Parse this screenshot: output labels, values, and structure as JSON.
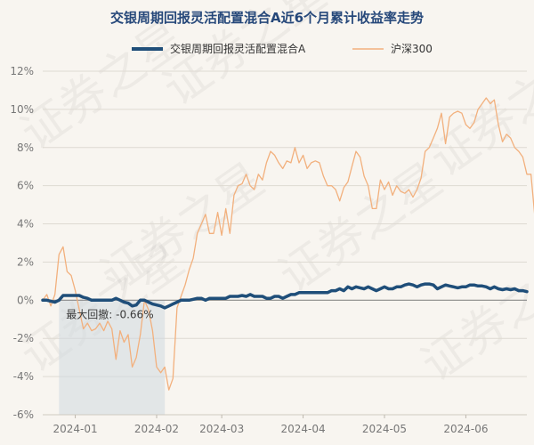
{
  "chart_data": {
    "type": "line",
    "title": "交银周期回报灵活配置混合A近6个月累计收益率走势",
    "watermark": "证券之星",
    "x_tick_labels": [
      "2024-01",
      "2024-02",
      "2024-03",
      "2024-04",
      "2024-05",
      "2024-06"
    ],
    "y_tick_labels": [
      "12%",
      "10%",
      "8%",
      "6%",
      "4%",
      "2%",
      "0%",
      "-2%",
      "-4%",
      "-6%"
    ],
    "ylim": [
      -6,
      12
    ],
    "y_unit": "%",
    "n_points": 120,
    "x_tick_indices": [
      8,
      28,
      44,
      64,
      84,
      104
    ],
    "drawdown_label": "最大回撤: -0.66%",
    "drawdown_range": [
      4,
      30
    ],
    "series": [
      {
        "name": "交银周期回报灵活配置混合A",
        "color": "#1f4e79",
        "values": [
          0.0,
          0.0,
          -0.05,
          -0.1,
          0.0,
          0.25,
          0.25,
          0.25,
          0.25,
          0.25,
          0.15,
          0.1,
          0.0,
          0.0,
          0.0,
          0.0,
          0.0,
          0.0,
          0.1,
          0.0,
          -0.1,
          -0.15,
          -0.3,
          -0.25,
          0.0,
          0.0,
          -0.1,
          -0.2,
          -0.25,
          -0.3,
          -0.4,
          -0.3,
          -0.2,
          -0.1,
          0.0,
          0.0,
          0.0,
          0.05,
          0.1,
          0.1,
          0.0,
          0.1,
          0.1,
          0.1,
          0.1,
          0.1,
          0.2,
          0.2,
          0.2,
          0.25,
          0.2,
          0.3,
          0.2,
          0.2,
          0.2,
          0.1,
          0.1,
          0.2,
          0.2,
          0.1,
          0.2,
          0.3,
          0.3,
          0.4,
          0.4,
          0.4,
          0.4,
          0.4,
          0.4,
          0.4,
          0.4,
          0.5,
          0.5,
          0.6,
          0.5,
          0.7,
          0.6,
          0.7,
          0.65,
          0.6,
          0.7,
          0.6,
          0.5,
          0.6,
          0.7,
          0.6,
          0.6,
          0.7,
          0.7,
          0.8,
          0.85,
          0.8,
          0.7,
          0.8,
          0.85,
          0.85,
          0.8,
          0.6,
          0.7,
          0.8,
          0.75,
          0.7,
          0.65,
          0.7,
          0.7,
          0.8,
          0.8,
          0.75,
          0.75,
          0.7,
          0.6,
          0.7,
          0.6,
          0.55,
          0.6,
          0.55,
          0.6,
          0.5,
          0.5,
          0.45
        ]
      },
      {
        "name": "沪深300",
        "color": "#f2b07d",
        "values": [
          0.0,
          0.3,
          -0.3,
          0.3,
          2.4,
          2.8,
          1.5,
          1.3,
          0.5,
          -0.5,
          -1.5,
          -1.2,
          -1.6,
          -1.5,
          -1.2,
          -1.6,
          -1.1,
          -1.5,
          -3.1,
          -1.6,
          -2.2,
          -1.8,
          -3.5,
          -3.0,
          -1.8,
          0.0,
          -0.5,
          -1.6,
          -3.5,
          -3.8,
          -3.5,
          -4.7,
          -4.1,
          -0.4,
          0.2,
          0.8,
          1.6,
          2.2,
          3.5,
          4.0,
          4.5,
          3.5,
          3.5,
          4.6,
          3.4,
          4.8,
          3.5,
          5.5,
          6.0,
          6.1,
          6.6,
          6.0,
          5.8,
          6.6,
          6.3,
          7.2,
          7.8,
          7.6,
          7.2,
          6.9,
          7.3,
          7.2,
          8.0,
          7.2,
          7.6,
          6.9,
          7.2,
          7.3,
          7.2,
          6.5,
          6.0,
          6.0,
          5.8,
          5.2,
          5.9,
          6.2,
          7.0,
          7.8,
          7.5,
          6.5,
          6.0,
          4.8,
          4.8,
          6.3,
          5.8,
          6.2,
          5.5,
          6.0,
          5.7,
          5.6,
          5.8,
          5.4,
          5.8,
          6.4,
          7.8,
          8.0,
          8.5,
          9.0,
          9.8,
          8.2,
          9.6,
          9.8,
          9.9,
          9.8,
          9.2,
          9.0,
          9.3,
          10.0,
          10.3,
          10.6,
          10.3,
          10.5,
          9.2,
          8.3,
          8.7,
          8.5,
          8.0,
          7.8,
          7.5,
          6.6,
          6.6,
          4.3
        ]
      }
    ]
  }
}
